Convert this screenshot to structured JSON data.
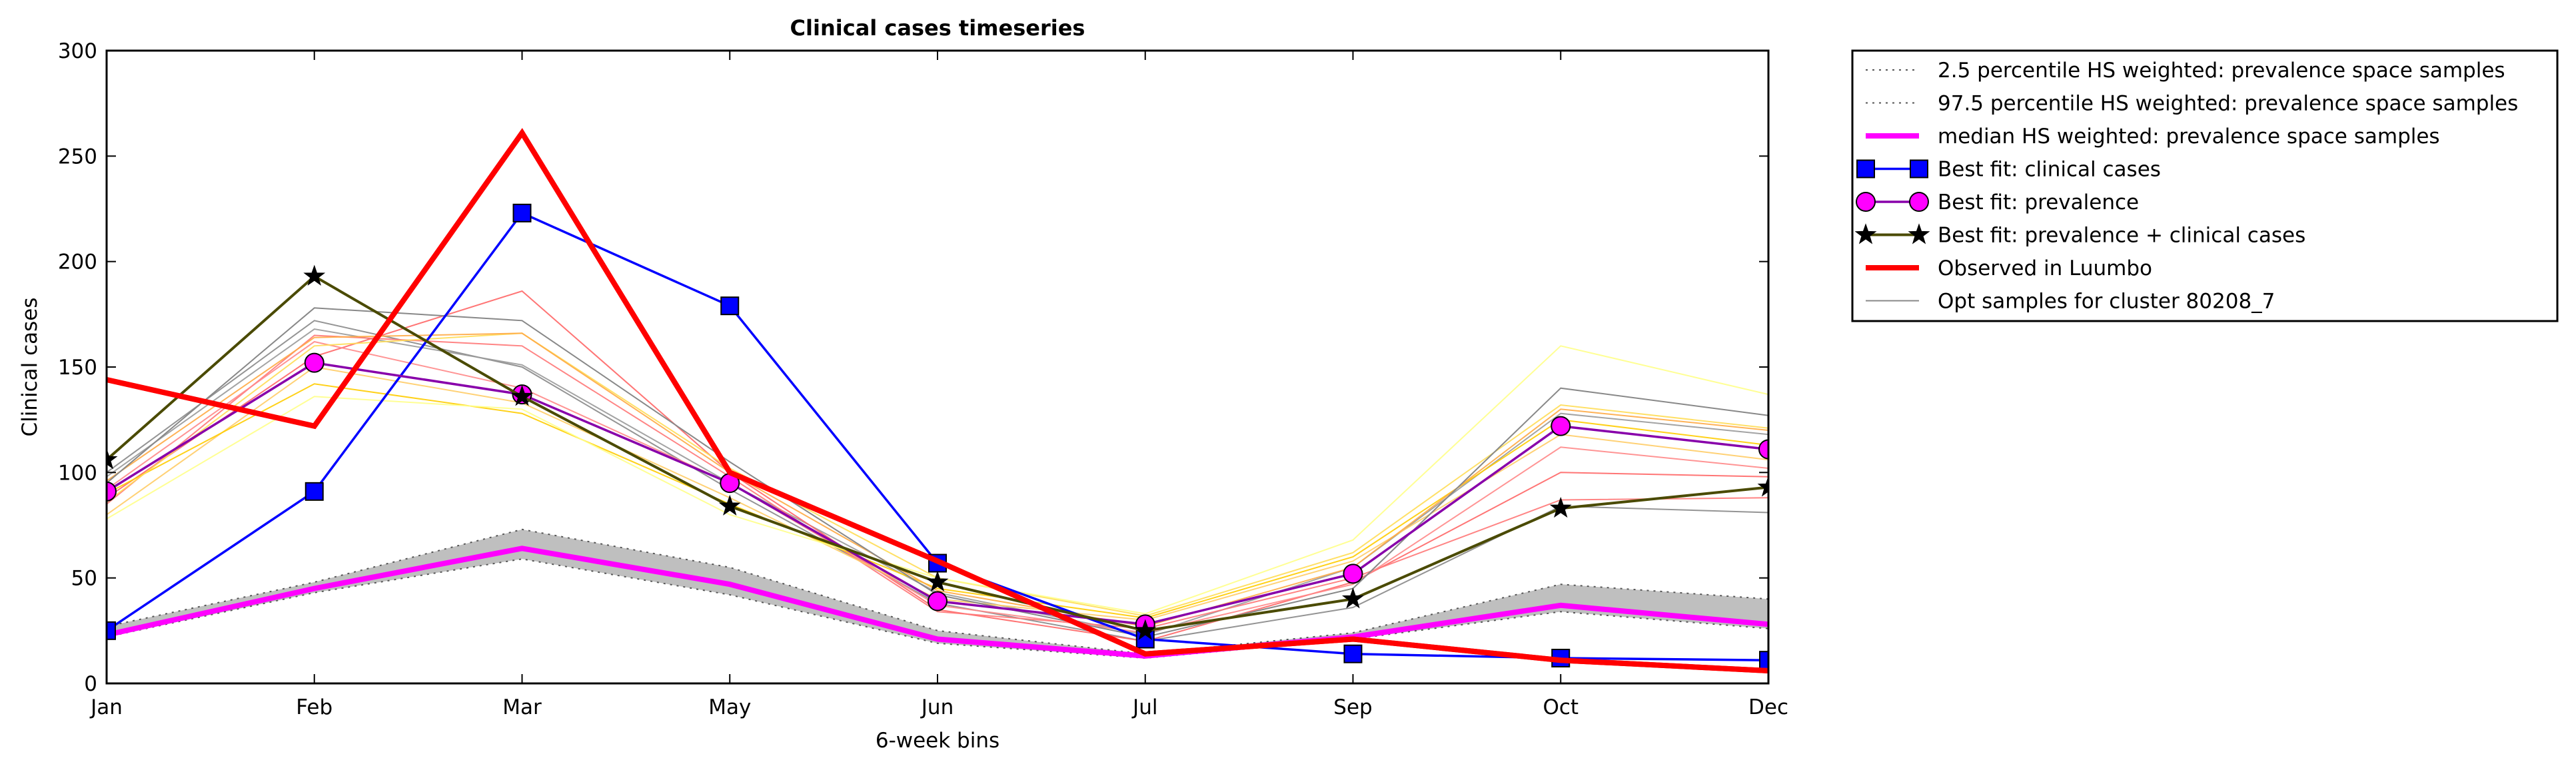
{
  "chart_data": {
    "type": "line",
    "title": "Clinical cases timeseries",
    "xlabel": "6-week bins",
    "ylabel": "Clinical cases",
    "categories": [
      "Jan",
      "Feb",
      "Mar",
      "May",
      "Jun",
      "Jul",
      "Sep",
      "Oct",
      "Dec"
    ],
    "ylim": [
      0,
      300
    ],
    "yticks": [
      "0",
      "50",
      "100",
      "150",
      "200",
      "250",
      "300"
    ],
    "grid": false,
    "legend_position": "outside-top-right",
    "band": {
      "lower": [
        22,
        43,
        59,
        42,
        19,
        12,
        21,
        34,
        26
      ],
      "upper": [
        27,
        48,
        73,
        55,
        25,
        14,
        24,
        47,
        40
      ],
      "fill": "#bfbfbf"
    },
    "series": [
      {
        "name": "2.5 percentile HS weighted: prevalence space samples",
        "style": "dotted",
        "color": "#555555",
        "marker": "none",
        "values": [
          22,
          43,
          59,
          42,
          19,
          12,
          21,
          34,
          26
        ]
      },
      {
        "name": "97.5 percentile HS weighted: prevalence space samples",
        "style": "dotted",
        "color": "#555555",
        "marker": "none",
        "values": [
          27,
          48,
          73,
          55,
          25,
          14,
          24,
          47,
          40
        ]
      },
      {
        "name": "median HS weighted: prevalence space samples",
        "style": "solid",
        "color": "#ff00ff",
        "marker": "none",
        "values": [
          23,
          45,
          64,
          47,
          21,
          13,
          22,
          37,
          28
        ]
      },
      {
        "name": "Best fit: clinical cases",
        "style": "solid",
        "color": "#0000ff",
        "marker": "square",
        "values": [
          25,
          91,
          223,
          179,
          57,
          21,
          14,
          12,
          11
        ]
      },
      {
        "name": "Best fit: prevalence",
        "style": "solid",
        "color": "#8800aa",
        "marker": "circle",
        "values": [
          91,
          152,
          137,
          95,
          39,
          28,
          52,
          122,
          111
        ]
      },
      {
        "name": "Best fit: prevalence + clinical cases",
        "style": "solid",
        "color": "#4a4a00",
        "marker": "star",
        "values": [
          106,
          193,
          136,
          84,
          48,
          25,
          40,
          83,
          93
        ]
      },
      {
        "name": "Observed in Luumbo",
        "style": "solid",
        "color": "#ff0000",
        "marker": "none",
        "values": [
          144,
          122,
          261,
          100,
          58,
          14,
          21,
          11,
          6
        ]
      },
      {
        "name": "Opt samples for cluster 80208_7",
        "style": "solid",
        "color": "#888888",
        "marker": "none",
        "values": [
          95,
          178,
          172,
          105,
          42,
          22,
          45,
          140,
          127
        ]
      }
    ],
    "extra_samples": [
      {
        "color": "#888888",
        "values": [
          100,
          172,
          150,
          92,
          38,
          20,
          36,
          84,
          81
        ]
      },
      {
        "color": "#999999",
        "values": [
          98,
          168,
          151,
          95,
          43,
          23,
          55,
          128,
          118
        ]
      },
      {
        "color": "#ff6666",
        "values": [
          88,
          155,
          186,
          100,
          35,
          20,
          48,
          100,
          98
        ]
      },
      {
        "color": "#ff7777",
        "values": [
          85,
          165,
          160,
          98,
          34,
          26,
          50,
          87,
          88
        ]
      },
      {
        "color": "#ff8888",
        "values": [
          92,
          162,
          140,
          95,
          37,
          24,
          47,
          112,
          102
        ]
      },
      {
        "color": "#ffcc66",
        "values": [
          80,
          150,
          133,
          88,
          40,
          30,
          58,
          118,
          106
        ]
      },
      {
        "color": "#ffcc00",
        "values": [
          90,
          142,
          128,
          85,
          45,
          31,
          60,
          125,
          113
        ]
      },
      {
        "color": "#ffdd55",
        "values": [
          86,
          160,
          166,
          102,
          50,
          32,
          62,
          132,
          121
        ]
      },
      {
        "color": "#ffff88",
        "values": [
          78,
          136,
          130,
          80,
          50,
          33,
          68,
          160,
          137
        ]
      },
      {
        "color": "#ffaa44",
        "values": [
          96,
          164,
          166,
          100,
          44,
          27,
          55,
          130,
          120
        ]
      }
    ]
  }
}
